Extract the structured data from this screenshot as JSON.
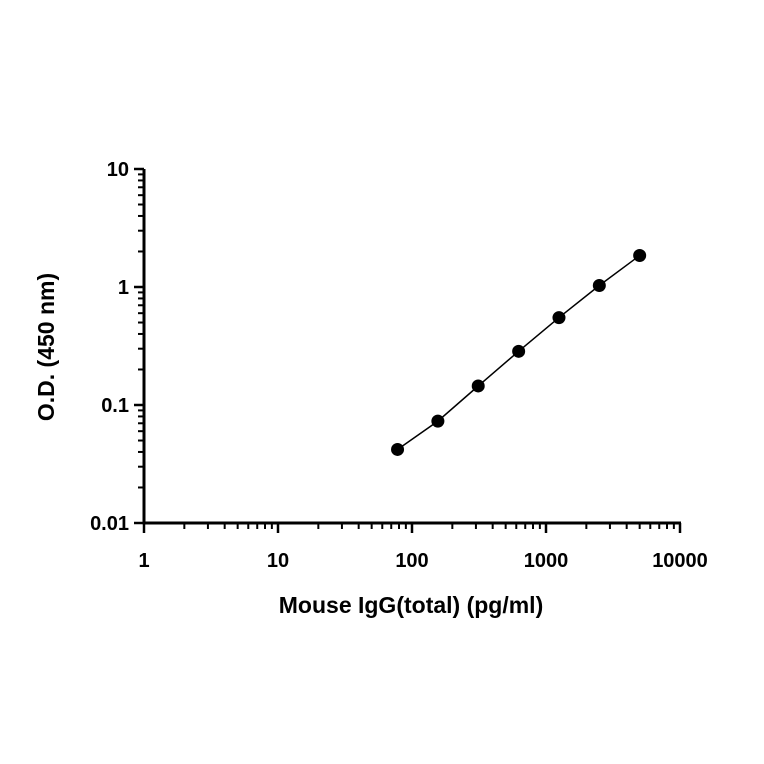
{
  "chart_data": {
    "type": "scatter",
    "title": "",
    "xlabel": "Mouse IgG(total) (pg/ml)",
    "ylabel": "O.D. (450 nm)",
    "x_scale": "log",
    "y_scale": "log",
    "xlim": [
      1,
      10000
    ],
    "ylim": [
      0.01,
      10
    ],
    "x_ticks": [
      "1",
      "10",
      "100",
      "1000",
      "10000"
    ],
    "y_ticks": [
      "0.01",
      "0.1",
      "1",
      "10"
    ],
    "grid": false,
    "legend": "none",
    "series": [
      {
        "points": [
          {
            "x": 78,
            "y": 0.042
          },
          {
            "x": 156,
            "y": 0.073
          },
          {
            "x": 312,
            "y": 0.145
          },
          {
            "x": 625,
            "y": 0.285
          },
          {
            "x": 1250,
            "y": 0.55
          },
          {
            "x": 2500,
            "y": 1.03
          },
          {
            "x": 5000,
            "y": 1.85
          }
        ],
        "marker": "filled-circle",
        "fit_line": true,
        "color": "#000000"
      }
    ]
  }
}
